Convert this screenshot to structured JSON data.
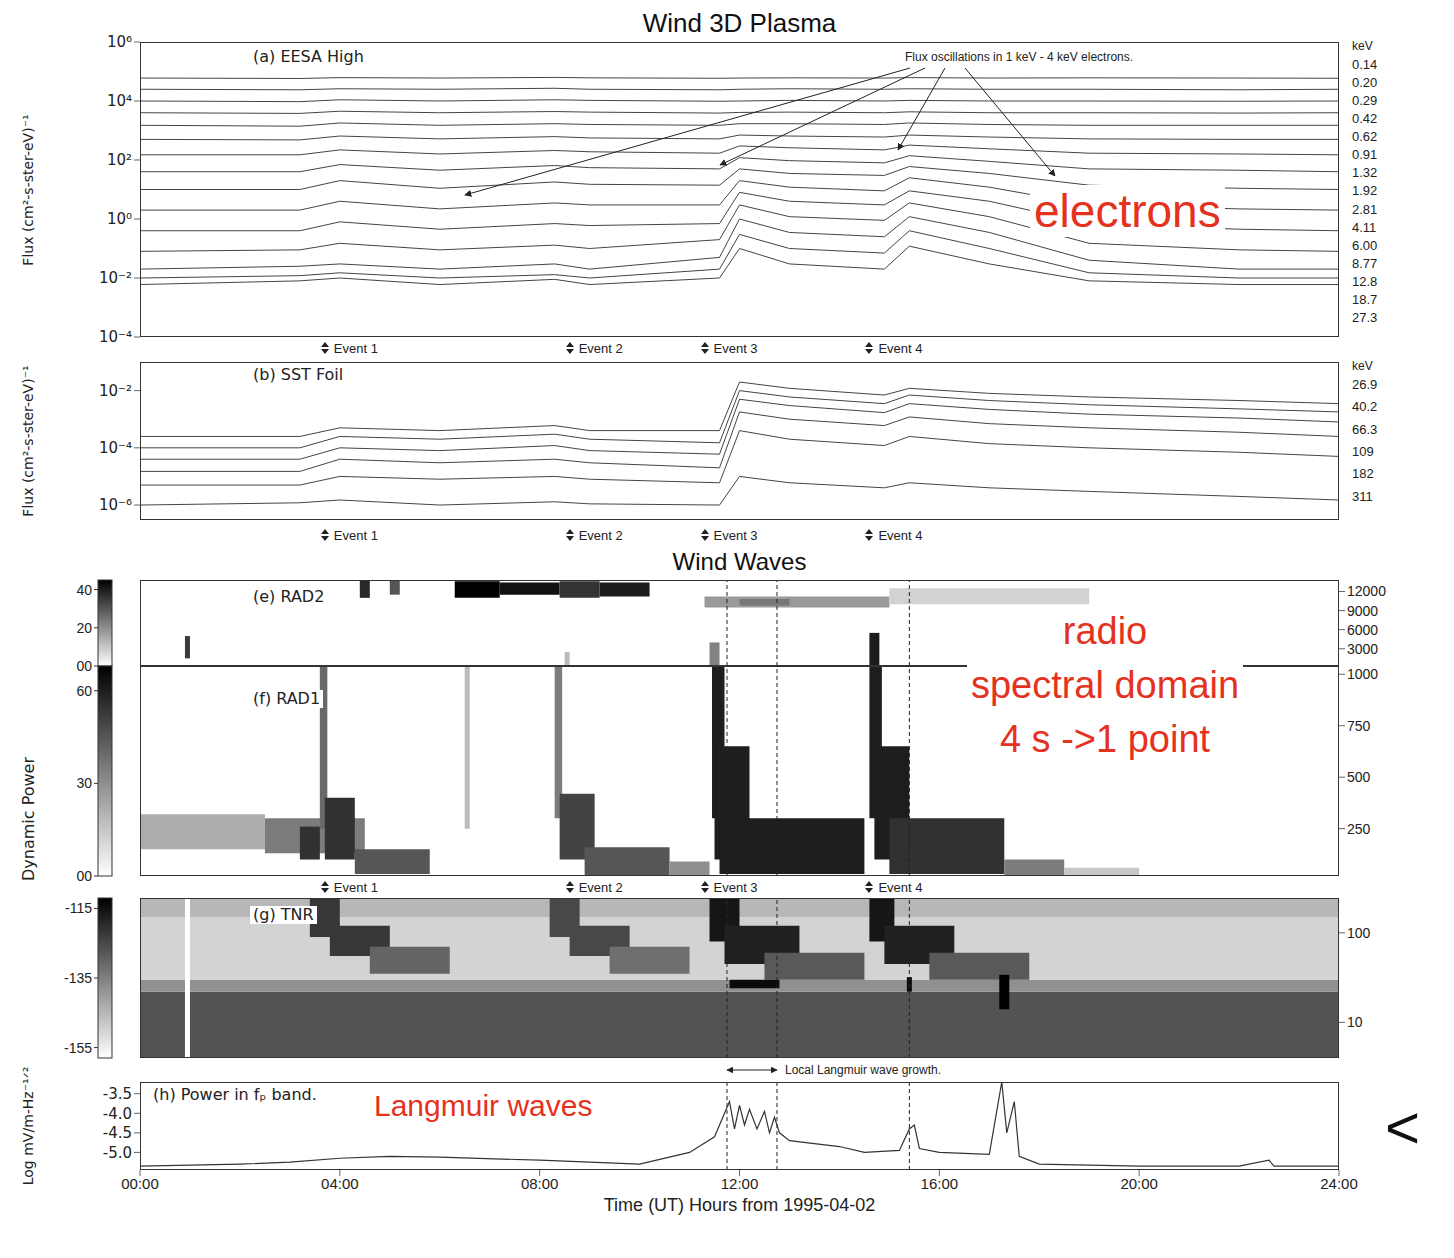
{
  "section_titles": [
    "Wind 3D Plasma",
    "Wind Waves"
  ],
  "x_label": "Time (UT) Hours from 1995-04-02",
  "colorbar_title": "Dynamic Power",
  "events": [
    {
      "label": "Event 1",
      "x": 3.7
    },
    {
      "label": "Event 2",
      "x": 8.6
    },
    {
      "label": "Event 3",
      "x": 11.3
    },
    {
      "label": "Event 4",
      "x": 14.6
    }
  ],
  "overlays": {
    "color": "#e5321e",
    "electrons": "electrons",
    "radio": [
      "radio",
      "spectral domain",
      "4 s ->1 point"
    ],
    "langmuir": "Langmuir waves",
    "pointer": "<"
  },
  "chart_data": [
    {
      "type": "line",
      "title": "(a) EESA High",
      "ylabel": "Flux (cm²-s-ster-eV)⁻¹",
      "annotation": "Flux oscillations in 1 keV - 4 keV electrons.",
      "log": "y",
      "tick_labels": "y",
      "color": "#444444",
      "legend_title": "keV",
      "xlim": [
        0,
        24
      ],
      "ylim": [
        0.0001,
        1000000
      ],
      "yticks": [
        {
          "value": 0.0001,
          "label": "10⁻⁴"
        },
        {
          "value": 0.01,
          "label": "10⁻²"
        },
        {
          "value": 1,
          "label": "10⁰"
        },
        {
          "value": 100,
          "label": "10²"
        },
        {
          "value": 10000,
          "label": "10⁴"
        },
        {
          "value": 1000000,
          "label": "10⁶"
        }
      ],
      "x": [
        0,
        3.2,
        4,
        6,
        8.3,
        9,
        11.6,
        12,
        13,
        14.9,
        15.4,
        17,
        19,
        22,
        24
      ],
      "series": [
        {
          "name": "0.14",
          "values": [
            60000,
            58000,
            62000,
            60000,
            63000,
            61000,
            59000,
            60000,
            61000,
            60000,
            62000,
            60000,
            61000,
            60000,
            59000
          ]
        },
        {
          "name": "0.20",
          "values": [
            25000,
            24000,
            26000,
            25000,
            27000,
            25000,
            24000,
            25000,
            26000,
            25000,
            26000,
            25000,
            25000,
            24000,
            25000
          ]
        },
        {
          "name": "0.29",
          "values": [
            10000,
            9500,
            11000,
            10000,
            11000,
            10500,
            9800,
            10000,
            10500,
            10000,
            10500,
            10000,
            10000,
            9800,
            10000
          ]
        },
        {
          "name": "0.42",
          "values": [
            4000,
            3800,
            4500,
            4000,
            4400,
            4200,
            3900,
            4100,
            4200,
            4000,
            4300,
            4000,
            4000,
            3900,
            4000
          ]
        },
        {
          "name": "0.62",
          "values": [
            1500,
            1400,
            1800,
            1500,
            1700,
            1600,
            1500,
            1700,
            1700,
            1600,
            1800,
            1600,
            1500,
            1500,
            1500
          ]
        },
        {
          "name": "0.91",
          "values": [
            500,
            480,
            650,
            520,
            620,
            560,
            520,
            700,
            650,
            600,
            700,
            600,
            520,
            500,
            500
          ]
        },
        {
          "name": "1.32",
          "values": [
            150,
            150,
            220,
            160,
            210,
            190,
            170,
            300,
            260,
            220,
            320,
            240,
            170,
            160,
            150
          ]
        },
        {
          "name": "1.92",
          "values": [
            40,
            40,
            70,
            45,
            65,
            55,
            50,
            120,
            95,
            80,
            140,
            90,
            50,
            45,
            40
          ]
        },
        {
          "name": "2.81",
          "values": [
            10,
            10,
            20,
            11,
            18,
            15,
            14,
            50,
            35,
            30,
            60,
            35,
            14,
            11,
            10
          ]
        },
        {
          "name": "4.11",
          "values": [
            2,
            2,
            4,
            2.2,
            3.5,
            3,
            3,
            20,
            12,
            9,
            25,
            12,
            3,
            2.2,
            2
          ]
        },
        {
          "name": "6.00",
          "values": [
            0.4,
            0.4,
            0.8,
            0.45,
            0.7,
            0.6,
            0.7,
            8,
            4,
            3,
            9,
            4,
            0.7,
            0.45,
            0.4
          ]
        },
        {
          "name": "8.77",
          "values": [
            0.08,
            0.09,
            0.15,
            0.09,
            0.13,
            0.1,
            0.2,
            3,
            1.2,
            0.9,
            3.5,
            1.2,
            0.15,
            0.09,
            0.08
          ]
        },
        {
          "name": "12.8",
          "values": [
            0.02,
            0.025,
            0.03,
            0.02,
            0.03,
            0.02,
            0.05,
            1,
            0.35,
            0.25,
            1.2,
            0.35,
            0.04,
            0.02,
            0.02
          ]
        },
        {
          "name": "18.7",
          "values": [
            0.01,
            0.012,
            0.015,
            0.01,
            0.013,
            0.01,
            0.02,
            0.3,
            0.1,
            0.07,
            0.4,
            0.1,
            0.015,
            0.01,
            0.01
          ]
        },
        {
          "name": "27.3",
          "values": [
            0.006,
            0.008,
            0.01,
            0.006,
            0.009,
            0.006,
            0.01,
            0.1,
            0.03,
            0.02,
            0.12,
            0.03,
            0.008,
            0.006,
            0.006
          ]
        }
      ]
    },
    {
      "type": "line",
      "title": "(b) SST Foil",
      "ylabel": "Flux (cm²-s-ster-eV)⁻¹",
      "log": "y",
      "tick_labels": "y",
      "color": "#444444",
      "legend_title": "keV",
      "xlim": [
        0,
        24
      ],
      "ylim": [
        3e-07,
        0.1
      ],
      "yticks": [
        {
          "value": 1e-06,
          "label": "10⁻⁶"
        },
        {
          "value": 0.0001,
          "label": "10⁻⁴"
        },
        {
          "value": 0.01,
          "label": "10⁻²"
        }
      ],
      "x": [
        0,
        3.2,
        4,
        6,
        8.3,
        9,
        11.6,
        12,
        13,
        14.9,
        15.4,
        17,
        19,
        22,
        24
      ],
      "series": [
        {
          "name": "26.9",
          "values": [
            0.00025,
            0.00025,
            0.0005,
            0.0004,
            0.0006,
            0.0004,
            0.0004,
            0.02,
            0.012,
            0.007,
            0.012,
            0.008,
            0.006,
            0.0045,
            0.0035
          ]
        },
        {
          "name": "40.2",
          "values": [
            0.0001,
            0.0001,
            0.00025,
            0.0002,
            0.0003,
            0.0002,
            0.00015,
            0.01,
            0.006,
            0.0035,
            0.007,
            0.0045,
            0.0032,
            0.0023,
            0.0018
          ]
        },
        {
          "name": "66.3",
          "values": [
            4e-05,
            4e-05,
            0.0001,
            8e-05,
            0.00012,
            8e-05,
            6e-05,
            0.005,
            0.003,
            0.0017,
            0.0035,
            0.0022,
            0.0015,
            0.0011,
            0.0008
          ]
        },
        {
          "name": "109",
          "values": [
            1.5e-05,
            1.5e-05,
            4e-05,
            3e-05,
            4e-05,
            3e-05,
            2e-05,
            0.0018,
            0.001,
            0.0006,
            0.0012,
            0.0007,
            0.0005,
            0.00035,
            0.00025
          ]
        },
        {
          "name": "182",
          "values": [
            5e-06,
            5e-06,
            1e-05,
            8e-06,
            1e-05,
            8e-06,
            6e-06,
            0.0004,
            0.0002,
            0.00012,
            0.00025,
            0.00014,
            0.0001,
            7e-05,
            5e-05
          ]
        },
        {
          "name": "311",
          "values": [
            1e-06,
            1.2e-06,
            1.5e-06,
            1e-06,
            1.3e-06,
            1.1e-06,
            1e-06,
            1e-05,
            6e-06,
            4e-06,
            6e-06,
            4e-06,
            3e-06,
            2e-06,
            1.5e-06
          ]
        }
      ]
    },
    {
      "type": "heatmap",
      "title": "(e) RAD2",
      "tick_labels": "y",
      "xlim": [
        0,
        24
      ],
      "ylim": [
        300,
        13800
      ],
      "yticks": [
        3000,
        6000,
        9000,
        12000
      ],
      "dashed_lines": [
        11.75,
        12.75,
        15.4
      ],
      "colorbar": {
        "range": [
          0,
          45
        ],
        "ticks": [
          {
            "value": 0,
            "label": "00"
          },
          20,
          40
        ]
      },
      "cells": [
        [
          0.9,
          1.0,
          1500,
          5000,
          35
        ],
        [
          4.4,
          4.6,
          11000,
          13800,
          38
        ],
        [
          5.0,
          5.2,
          11500,
          13800,
          30
        ],
        [
          6.3,
          7.2,
          11000,
          13600,
          45
        ],
        [
          7.2,
          8.4,
          11500,
          13400,
          42
        ],
        [
          8.4,
          9.2,
          11000,
          13600,
          36
        ],
        [
          9.2,
          10.2,
          11200,
          13400,
          40
        ],
        [
          11.3,
          15.0,
          9500,
          11200,
          18
        ],
        [
          12.0,
          13.0,
          9800,
          10800,
          24
        ],
        [
          15.0,
          19.0,
          10000,
          12500,
          8
        ],
        [
          11.4,
          11.6,
          300,
          4000,
          22
        ],
        [
          14.6,
          14.8,
          300,
          5500,
          40
        ],
        [
          8.5,
          8.6,
          300,
          2500,
          12
        ]
      ]
    },
    {
      "type": "heatmap",
      "title": "(f) RAD1",
      "tick_labels": "y",
      "xlim": [
        0,
        24
      ],
      "ylim": [
        20,
        1040
      ],
      "yticks": [
        250,
        500,
        750,
        1000
      ],
      "dashed_lines": [
        11.75,
        12.75,
        15.4
      ],
      "colorbar": {
        "range": [
          0,
          68
        ],
        "ticks": [
          {
            "value": 0,
            "label": "00"
          },
          30,
          60
        ]
      },
      "cells": [
        [
          0,
          2.5,
          150,
          320,
          22
        ],
        [
          2.5,
          4.5,
          130,
          300,
          35
        ],
        [
          3.2,
          3.6,
          100,
          260,
          55
        ],
        [
          3.6,
          3.75,
          250,
          1040,
          40
        ],
        [
          3.7,
          4.3,
          100,
          400,
          55
        ],
        [
          4.3,
          5.8,
          30,
          150,
          45
        ],
        [
          6.5,
          6.6,
          250,
          1040,
          18
        ],
        [
          8.3,
          8.45,
          300,
          1040,
          35
        ],
        [
          8.4,
          9.1,
          100,
          420,
          50
        ],
        [
          8.9,
          10.6,
          25,
          160,
          45
        ],
        [
          10.6,
          11.4,
          25,
          90,
          30
        ],
        [
          11.45,
          11.7,
          300,
          1040,
          60
        ],
        [
          11.5,
          12.2,
          100,
          650,
          60
        ],
        [
          11.6,
          14.5,
          30,
          300,
          60
        ],
        [
          14.6,
          14.85,
          300,
          1040,
          60
        ],
        [
          14.7,
          15.4,
          100,
          650,
          60
        ],
        [
          15.0,
          17.3,
          30,
          300,
          55
        ],
        [
          17.3,
          18.5,
          20,
          100,
          35
        ],
        [
          18.5,
          20,
          20,
          60,
          15
        ]
      ]
    },
    {
      "type": "heatmap",
      "title": "(g) TNR",
      "log": "y",
      "tick_labels": "y",
      "xlim": [
        0,
        24
      ],
      "ylim": [
        4,
        245
      ],
      "yticks": [
        10,
        100
      ],
      "dashed_lines": [
        11.75,
        12.75,
        15.4
      ],
      "colorbar": {
        "range": [
          -158,
          -112
        ],
        "ticks": [
          -155,
          -135,
          -115
        ]
      },
      "cells": [
        [
          0,
          24,
          4,
          22,
          -127
        ],
        [
          0,
          24,
          22,
          30,
          -138
        ],
        [
          0,
          24,
          30,
          245,
          -150
        ],
        [
          0,
          24,
          150,
          245,
          -145
        ],
        [
          0.9,
          1.0,
          4,
          245,
          -158
        ],
        [
          3.4,
          4.0,
          90,
          245,
          -122
        ],
        [
          3.8,
          5.0,
          55,
          120,
          -122
        ],
        [
          4.6,
          6.2,
          35,
          70,
          -130
        ],
        [
          8.2,
          8.8,
          90,
          245,
          -125
        ],
        [
          8.6,
          9.8,
          55,
          120,
          -125
        ],
        [
          9.4,
          11.0,
          35,
          70,
          -132
        ],
        [
          11.4,
          12.0,
          80,
          245,
          -116
        ],
        [
          11.7,
          13.2,
          45,
          120,
          -118
        ],
        [
          12.5,
          14.5,
          30,
          60,
          -128
        ],
        [
          14.6,
          15.1,
          80,
          245,
          -116
        ],
        [
          14.9,
          16.3,
          45,
          120,
          -118
        ],
        [
          15.8,
          17.8,
          30,
          60,
          -128
        ],
        [
          11.8,
          12.8,
          24,
          30,
          -114
        ],
        [
          15.35,
          15.45,
          22,
          32,
          -114
        ],
        [
          17.2,
          17.4,
          14,
          34,
          -112
        ]
      ]
    },
    {
      "type": "line",
      "title": "(h) Power in fₚ band.",
      "ylabel": "Log mV/m-Hz⁻¹ᐟ²",
      "xlabel": "Time (UT) Hours from 1995-04-02",
      "color": "#333333",
      "annotation": {
        "text": "Local Langmuir wave growth.",
        "x": [
          11.75,
          12.75
        ]
      },
      "dashed_lines": [
        11.75,
        12.75,
        15.4
      ],
      "xlim": [
        0,
        24
      ],
      "xticks": [
        {
          "value": 0,
          "label": "00:00"
        },
        {
          "value": 4,
          "label": "04:00"
        },
        {
          "value": 8,
          "label": "08:00"
        },
        {
          "value": 12,
          "label": "12:00"
        },
        {
          "value": 16,
          "label": "16:00"
        },
        {
          "value": 20,
          "label": "20:00"
        },
        {
          "value": 24,
          "label": "24:00"
        }
      ],
      "ylim": [
        -5.45,
        -3.2
      ],
      "yticks": [
        {
          "value": -5,
          "label": "-5.0"
        },
        -4.5,
        {
          "value": -4,
          "label": "-4.0"
        },
        -3.5
      ],
      "x": [
        0,
        2,
        3,
        4,
        5,
        6,
        8,
        9,
        10,
        11,
        11.5,
        11.8,
        11.9,
        12.0,
        12.1,
        12.2,
        12.35,
        12.5,
        12.6,
        12.7,
        12.8,
        13,
        14,
        14.5,
        15.2,
        15.4,
        15.5,
        15.6,
        16,
        17,
        17.25,
        17.35,
        17.5,
        17.6,
        18,
        20,
        22,
        22.6,
        22.7,
        24
      ],
      "values": [
        -5.35,
        -5.3,
        -5.25,
        -5.15,
        -5.1,
        -5.12,
        -5.2,
        -5.25,
        -5.3,
        -5.0,
        -4.6,
        -3.7,
        -4.4,
        -3.8,
        -4.3,
        -3.9,
        -4.4,
        -3.95,
        -4.5,
        -4.1,
        -4.5,
        -4.7,
        -4.85,
        -5.0,
        -4.95,
        -4.4,
        -4.3,
        -4.9,
        -5.0,
        -5.05,
        -3.2,
        -4.5,
        -3.7,
        -5.1,
        -5.3,
        -5.35,
        -5.35,
        -5.2,
        -5.35,
        -5.35
      ]
    }
  ]
}
